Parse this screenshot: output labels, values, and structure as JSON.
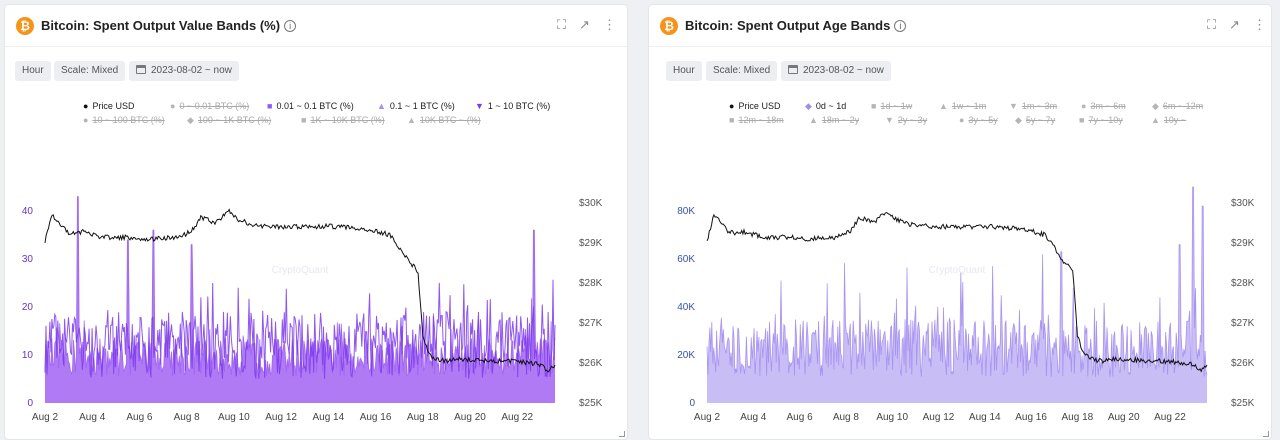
{
  "colors": {
    "accent_left": "#7c3aed",
    "fill_left": "#b07af5",
    "accent_right": "#a38cf0",
    "fill_right": "#c8bdf5",
    "price": "#111111",
    "disabled": "#b5b5b5",
    "axis_left": "#6633cc",
    "axis_right": "#3355aa",
    "watermark": "#e7e7ee"
  },
  "watermark": "CryptoQuant",
  "left": {
    "title": "Bitcoin: Spent Output Value Bands (%)",
    "toolbar": {
      "hour": "Hour",
      "scale": "Scale: Mixed",
      "range": "2023-08-02 ~ now"
    },
    "legend": [
      {
        "label": "Price USD",
        "symbol": "●",
        "active": true,
        "color": "#111111"
      },
      {
        "label": "0 ~ 0.01 BTC (%)",
        "symbol": "●",
        "active": false,
        "color": "#b5b5b5"
      },
      {
        "label": "0.01 ~ 0.1 BTC (%)",
        "symbol": "■",
        "active": true,
        "color": "#8b5cf6"
      },
      {
        "label": "0.1 ~ 1 BTC (%)",
        "symbol": "▲",
        "active": true,
        "color": "#a78bfa"
      },
      {
        "label": "1 ~ 10 BTC (%)",
        "symbol": "▼",
        "active": true,
        "color": "#7c3aed"
      },
      {
        "label": "10 ~ 100 BTC (%)",
        "symbol": "●",
        "active": false,
        "color": "#b5b5b5"
      },
      {
        "label": "100 ~ 1K BTC (%)",
        "symbol": "◆",
        "active": false,
        "color": "#b5b5b5"
      },
      {
        "label": "1K ~ 10K BTC (%)",
        "symbol": "■",
        "active": false,
        "color": "#b5b5b5"
      },
      {
        "label": "10K BTC ~ (%)",
        "symbol": "▲",
        "active": false,
        "color": "#b5b5b5"
      }
    ]
  },
  "right": {
    "title": "Bitcoin: Spent Output Age Bands",
    "toolbar": {
      "hour": "Hour",
      "scale": "Scale: Mixed",
      "range": "2023-08-02 ~ now"
    },
    "legend": [
      {
        "label": "Price USD",
        "symbol": "●",
        "active": true,
        "color": "#111111"
      },
      {
        "label": "0d ~ 1d",
        "symbol": "◆",
        "active": true,
        "color": "#a38cf0"
      },
      {
        "label": "1d ~ 1w",
        "symbol": "■",
        "active": false,
        "color": "#b5b5b5"
      },
      {
        "label": "1w ~ 1m",
        "symbol": "▲",
        "active": false,
        "color": "#b5b5b5"
      },
      {
        "label": "1m ~ 3m",
        "symbol": "▼",
        "active": false,
        "color": "#b5b5b5"
      },
      {
        "label": "3m ~ 6m",
        "symbol": "●",
        "active": false,
        "color": "#b5b5b5"
      },
      {
        "label": "6m ~ 12m",
        "symbol": "◆",
        "active": false,
        "color": "#b5b5b5"
      },
      {
        "label": "12m ~ 18m",
        "symbol": "■",
        "active": false,
        "color": "#b5b5b5"
      },
      {
        "label": "18m ~ 2y",
        "symbol": "▲",
        "active": false,
        "color": "#b5b5b5"
      },
      {
        "label": "2y ~ 3y",
        "symbol": "▼",
        "active": false,
        "color": "#b5b5b5"
      },
      {
        "label": "3y ~ 5y",
        "symbol": "●",
        "active": false,
        "color": "#b5b5b5"
      },
      {
        "label": "5y ~ 7y",
        "symbol": "◆",
        "active": false,
        "color": "#b5b5b5"
      },
      {
        "label": "7y ~ 10y",
        "symbol": "■",
        "active": false,
        "color": "#b5b5b5"
      },
      {
        "label": "10y ~",
        "symbol": "▲",
        "active": false,
        "color": "#b5b5b5"
      }
    ]
  },
  "chart_data": [
    {
      "type": "area",
      "title": "Bitcoin: Spent Output Value Bands (%)",
      "x_ticks": [
        "Aug 2",
        "Aug 4",
        "Aug 6",
        "Aug 8",
        "Aug 10",
        "Aug 12",
        "Aug 14",
        "Aug 16",
        "Aug 18",
        "Aug 20",
        "Aug 22"
      ],
      "x_range_days": [
        2,
        23.6
      ],
      "y_left_ticks": [
        "0",
        "10",
        "20",
        "30",
        "40"
      ],
      "y_left_range": [
        0,
        45
      ],
      "y_right_ticks": [
        "$25K",
        "$26K",
        "$27K",
        "$28K",
        "$29K",
        "$30K"
      ],
      "y_right_range": [
        25000,
        30400
      ],
      "series": [
        {
          "name": "0.01 ~ 0.1 BTC (%)",
          "role": "filled-base",
          "baseline": 8,
          "noise": 4,
          "spikes": [
            [
              3.4,
              43
            ],
            [
              5.5,
              34
            ],
            [
              6.6,
              36
            ],
            [
              8.2,
              33
            ],
            [
              22.7,
              36
            ]
          ]
        },
        {
          "name": "1 ~ 10 BTC (%)",
          "role": "spiky-line",
          "baseline": 12,
          "noise": 7
        },
        {
          "name": "Price USD",
          "role": "price",
          "points": [
            [
              2,
              29050
            ],
            [
              2.3,
              29700
            ],
            [
              2.6,
              29500
            ],
            [
              3,
              29250
            ],
            [
              3.6,
              29280
            ],
            [
              4.4,
              29150
            ],
            [
              5.5,
              29140
            ],
            [
              6.5,
              29100
            ],
            [
              7.6,
              29150
            ],
            [
              8.2,
              29280
            ],
            [
              8.6,
              29650
            ],
            [
              9.2,
              29500
            ],
            [
              9.8,
              29800
            ],
            [
              10.2,
              29580
            ],
            [
              11,
              29430
            ],
            [
              12,
              29410
            ],
            [
              13,
              29400
            ],
            [
              14,
              29420
            ],
            [
              15,
              29380
            ],
            [
              16,
              29310
            ],
            [
              16.6,
              29200
            ],
            [
              17,
              28900
            ],
            [
              17.4,
              28550
            ],
            [
              17.8,
              28300
            ],
            [
              18,
              26700
            ],
            [
              18.3,
              26200
            ],
            [
              18.6,
              26100
            ],
            [
              19,
              26050
            ],
            [
              19.6,
              26100
            ],
            [
              20.4,
              26080
            ],
            [
              21.2,
              26050
            ],
            [
              22,
              26040
            ],
            [
              22.6,
              26000
            ],
            [
              23,
              25950
            ],
            [
              23.3,
              25800
            ],
            [
              23.6,
              25950
            ]
          ]
        }
      ]
    },
    {
      "type": "area",
      "title": "Bitcoin: Spent Output Age Bands",
      "x_ticks": [
        "Aug 2",
        "Aug 4",
        "Aug 6",
        "Aug 8",
        "Aug 10",
        "Aug 12",
        "Aug 14",
        "Aug 16",
        "Aug 18",
        "Aug 20",
        "Aug 22"
      ],
      "x_range_days": [
        2,
        23.6
      ],
      "y_left_ticks": [
        "0",
        "20K",
        "40K",
        "60K",
        "80K"
      ],
      "y_left_range": [
        0,
        90000
      ],
      "y_right_ticks": [
        "$25K",
        "$26K",
        "$27K",
        "$28K",
        "$29K",
        "$30K"
      ],
      "y_right_range": [
        25000,
        30400
      ],
      "series": [
        {
          "name": "0d ~ 1d",
          "role": "filled-base",
          "baseline": 18000,
          "noise": 12000,
          "spikes": [
            [
              16.5,
              62000
            ],
            [
              17.3,
              63000
            ],
            [
              22.4,
              66000
            ],
            [
              23.0,
              90000
            ],
            [
              23.4,
              82000
            ]
          ]
        },
        {
          "name": "Price USD",
          "role": "price",
          "points": [
            [
              2,
              29050
            ],
            [
              2.3,
              29700
            ],
            [
              2.6,
              29500
            ],
            [
              3,
              29250
            ],
            [
              3.6,
              29280
            ],
            [
              4.4,
              29150
            ],
            [
              5.5,
              29140
            ],
            [
              6.5,
              29100
            ],
            [
              7.6,
              29150
            ],
            [
              8.2,
              29280
            ],
            [
              8.6,
              29650
            ],
            [
              9.2,
              29500
            ],
            [
              9.8,
              29800
            ],
            [
              10.2,
              29580
            ],
            [
              11,
              29430
            ],
            [
              12,
              29410
            ],
            [
              13,
              29400
            ],
            [
              14,
              29420
            ],
            [
              15,
              29380
            ],
            [
              16,
              29310
            ],
            [
              16.6,
              29200
            ],
            [
              17,
              28900
            ],
            [
              17.4,
              28550
            ],
            [
              17.8,
              28300
            ],
            [
              18,
              26700
            ],
            [
              18.3,
              26200
            ],
            [
              18.6,
              26100
            ],
            [
              19,
              26050
            ],
            [
              19.6,
              26100
            ],
            [
              20.4,
              26080
            ],
            [
              21.2,
              26050
            ],
            [
              22,
              26040
            ],
            [
              22.6,
              26000
            ],
            [
              23,
              25950
            ],
            [
              23.3,
              25800
            ],
            [
              23.6,
              25950
            ]
          ]
        }
      ]
    }
  ]
}
